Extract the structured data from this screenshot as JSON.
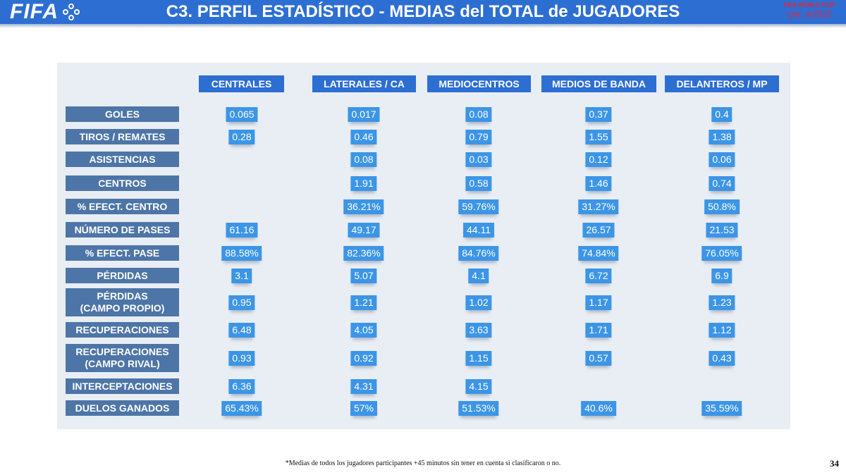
{
  "header": {
    "logo_text": "FIFA",
    "title": "C3. PERFIL ESTADÍSTICO - MEDIAS del TOTAL de JUGADORES",
    "badge_top": "FIFA WORLD CUP",
    "badge_bottom": "Qat_ar2022",
    "brand_color": "#2d6ed3"
  },
  "columns": [
    "CENTRALES",
    "LATERALES / CA",
    "MEDIOCENTROS",
    "MEDIOS DE BANDA",
    "DELANTEROS / MP"
  ],
  "rows": [
    {
      "label": "GOLES",
      "values": [
        "0.065",
        "0.017",
        "0.08",
        "0.37",
        "0.4"
      ]
    },
    {
      "label": "TIROS / REMATES",
      "values": [
        "0.28",
        "0.46",
        "0.79",
        "1.55",
        "1.38"
      ]
    },
    {
      "label": "ASISTENCIAS",
      "values": [
        "",
        "0.08",
        "0.03",
        "0.12",
        "0.06"
      ]
    },
    {
      "label": "CENTROS",
      "values": [
        "",
        "1.91",
        "0.58",
        "1.46",
        "0.74"
      ]
    },
    {
      "label": "% EFECT. CENTRO",
      "values": [
        "",
        "36.21%",
        "59.76%",
        "31.27%",
        "50.8%"
      ]
    },
    {
      "label": "NÚMERO DE PASES",
      "values": [
        "61.16",
        "49.17",
        "44.11",
        "26.57",
        "21.53"
      ]
    },
    {
      "label": "% EFECT. PASE",
      "values": [
        "88.58%",
        "82.36%",
        "84.76%",
        "74.84%",
        "76.05%"
      ]
    },
    {
      "label": "PÉRDIDAS",
      "values": [
        "3.1",
        "5.07",
        "4.1",
        "6.72",
        "6.9"
      ]
    },
    {
      "label": "PÉRDIDAS\n(CAMPO PROPIO)",
      "values": [
        "0.95",
        "1.21",
        "1.02",
        "1.17",
        "1.23"
      ]
    },
    {
      "label": "RECUPERACIONES",
      "values": [
        "6.48",
        "4.05",
        "3.63",
        "1.71",
        "1.12"
      ]
    },
    {
      "label": "RECUPERACIONES\n(CAMPO RIVAL)",
      "values": [
        "0.93",
        "0.92",
        "1.15",
        "0.57",
        "0.43"
      ]
    },
    {
      "label": "INTERCEPTACIONES",
      "values": [
        "6.36",
        "4.31",
        "4.15",
        "",
        ""
      ]
    },
    {
      "label": "DUELOS GANADOS",
      "values": [
        "65.43%",
        "57%",
        "51.53%",
        "40.6%",
        "35.59%"
      ]
    }
  ],
  "footnote": "*Medias de todos los jugadores participantes +45 minutos sin tener en cuenta si clasificaron o no.",
  "page_number": "34"
}
